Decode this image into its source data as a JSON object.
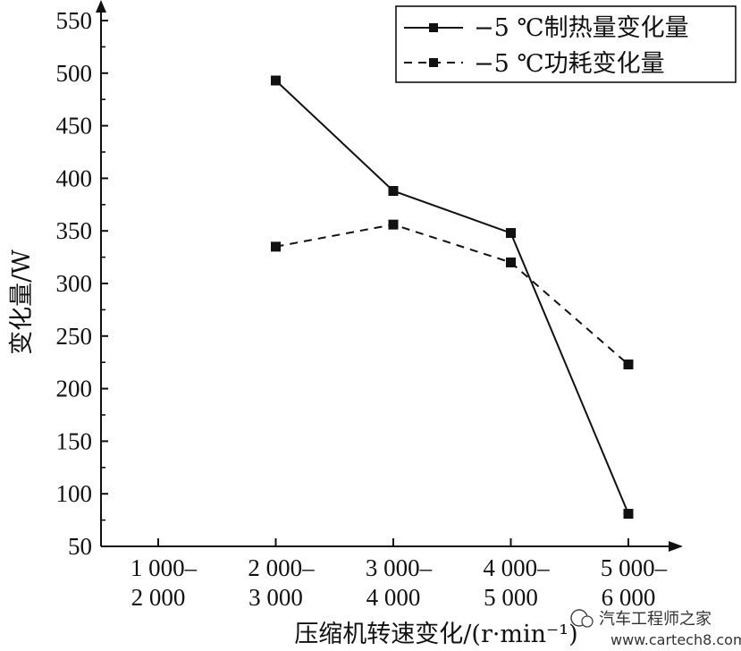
{
  "chart_data": {
    "type": "line",
    "title": "",
    "xlabel": "压缩机转速变化/(r·min⁻¹)",
    "ylabel": "变化量/W",
    "ylim": [
      50,
      550
    ],
    "yticks": [
      50,
      100,
      150,
      200,
      250,
      300,
      350,
      400,
      450,
      500,
      550
    ],
    "categories": [
      [
        "1 000–",
        "2 000"
      ],
      [
        "2 000–",
        "3 000"
      ],
      [
        "3 000–",
        "4 000"
      ],
      [
        "4 000–",
        "5 000"
      ],
      [
        "5 000–",
        "6 000"
      ]
    ],
    "series": [
      {
        "name": "−5 ℃制热量变化量",
        "style": "solid",
        "values": [
          null,
          493,
          388,
          348,
          81
        ]
      },
      {
        "name": "−5 ℃功耗变化量",
        "style": "dashed",
        "values": [
          null,
          335,
          356,
          320,
          223
        ]
      }
    ],
    "legend_position": "top-right",
    "grid": false,
    "marker": "square",
    "line_color": "#111111"
  },
  "watermark": {
    "brand": "汽车工程师之家",
    "url": "www.cartech8.com"
  }
}
